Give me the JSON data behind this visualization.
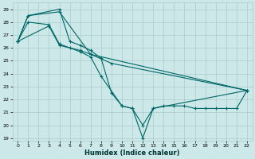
{
  "xlabel": "Humidex (Indice chaleur)",
  "bg_color": "#cce8e8",
  "grid_color": "#aacccc",
  "line_color": "#006666",
  "xlim": [
    -0.5,
    22.5
  ],
  "ylim": [
    18.8,
    29.5
  ],
  "yticks": [
    19,
    20,
    21,
    22,
    23,
    24,
    25,
    26,
    27,
    28,
    29
  ],
  "xticks": [
    0,
    1,
    2,
    3,
    4,
    5,
    6,
    7,
    8,
    9,
    10,
    11,
    12,
    13,
    14,
    15,
    16,
    17,
    18,
    19,
    20,
    21,
    22
  ],
  "series": [
    {
      "x": [
        0,
        1,
        4,
        5,
        6,
        7,
        8,
        9,
        10,
        11,
        12,
        13,
        22
      ],
      "y": [
        26.5,
        28.5,
        29.0,
        26.5,
        26.2,
        25.8,
        25.2,
        22.5,
        21.5,
        21.3,
        19.0,
        21.3,
        22.7
      ]
    },
    {
      "x": [
        0,
        1,
        3,
        4,
        5,
        6,
        7,
        8,
        10,
        11,
        12,
        13,
        14,
        15,
        16,
        17,
        18,
        19,
        20,
        21,
        22
      ],
      "y": [
        26.5,
        28.0,
        27.8,
        26.3,
        26.0,
        25.7,
        25.3,
        23.8,
        21.5,
        21.3,
        20.0,
        21.3,
        21.5,
        21.5,
        21.5,
        21.3,
        21.3,
        21.3,
        21.3,
        21.3,
        22.7
      ]
    },
    {
      "x": [
        0,
        3,
        4,
        6,
        7,
        9,
        22
      ],
      "y": [
        26.5,
        27.7,
        26.2,
        25.8,
        25.5,
        24.8,
        22.7
      ]
    },
    {
      "x": [
        0,
        1,
        4,
        7,
        22
      ],
      "y": [
        26.5,
        28.5,
        28.8,
        25.5,
        22.7
      ]
    }
  ]
}
